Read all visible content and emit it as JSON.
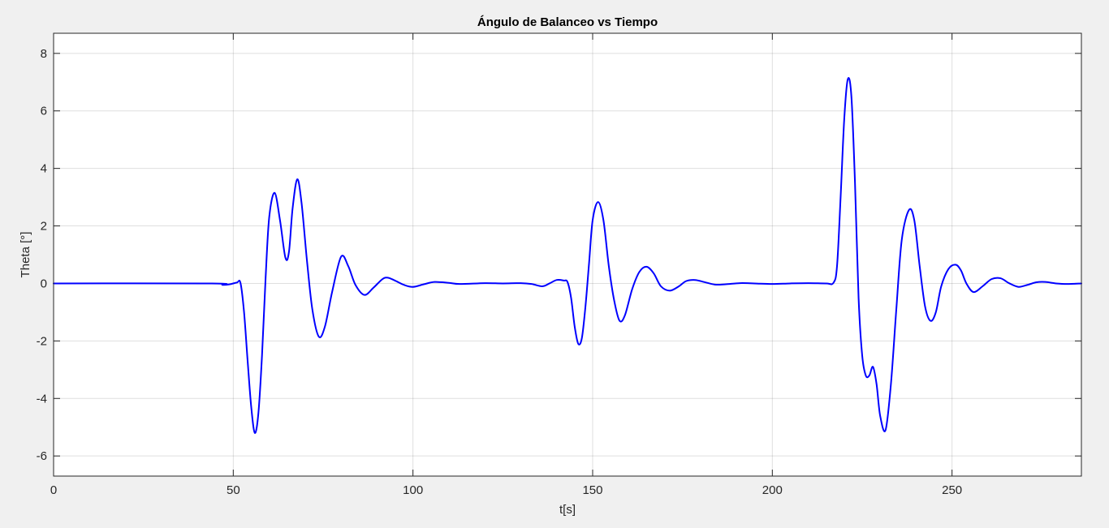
{
  "chart_data": {
    "type": "line",
    "title": "Ángulo de Balanceo vs Tiempo",
    "xlabel": "t[s]",
    "ylabel": "Theta [°]",
    "xlim": [
      0,
      286
    ],
    "ylim": [
      -6.7,
      8.7
    ],
    "grid": true,
    "x_ticks": [
      0,
      50,
      100,
      150,
      200,
      250
    ],
    "x_tick_labels": [
      "0",
      "50",
      "100",
      "150",
      "200",
      "250"
    ],
    "y_ticks": [
      -6,
      -4,
      -2,
      0,
      2,
      4,
      6,
      8
    ],
    "y_tick_labels": [
      "-6",
      "-4",
      "-2",
      "0",
      "2",
      "4",
      "6",
      "8"
    ],
    "series": [
      {
        "name": "theta",
        "color": "#0000ff",
        "x": [
          0,
          44,
          47,
          49,
          51,
          52,
          53,
          54,
          55,
          56,
          57,
          58,
          59,
          60,
          61.5,
          63,
          64.5,
          65.5,
          66.5,
          67.8,
          69,
          70.5,
          72,
          73.8,
          75.5,
          77.5,
          80,
          82,
          84,
          86.5,
          89,
          91.5,
          93,
          95,
          97.5,
          100,
          103,
          106,
          110,
          113,
          120,
          125,
          130,
          133,
          136,
          138,
          140,
          142,
          143,
          144,
          145,
          146,
          147,
          148,
          149,
          150,
          151.5,
          153,
          154.5,
          156,
          157.5,
          159,
          161,
          163,
          165,
          167,
          169,
          171.5,
          174,
          176,
          178.5,
          181,
          184,
          187,
          191,
          195,
          200,
          205,
          210,
          215,
          217,
          218,
          219,
          220,
          221,
          222,
          223,
          224,
          225,
          226,
          227,
          228,
          229,
          230,
          231.5,
          233,
          234.5,
          236,
          238,
          239.5,
          241,
          242.5,
          244,
          245.5,
          247,
          249,
          251,
          252.5,
          254,
          256,
          258.5,
          261,
          263.5,
          266,
          268.5,
          271,
          273.5,
          276,
          279,
          282,
          286
        ],
        "values": [
          0,
          0,
          -0.05,
          -0.03,
          0.03,
          0.02,
          -1.0,
          -2.7,
          -4.3,
          -5.2,
          -4.5,
          -2.5,
          0.2,
          2.3,
          3.15,
          2.2,
          0.9,
          1.1,
          2.6,
          3.62,
          2.8,
          0.8,
          -0.9,
          -1.85,
          -1.5,
          -0.3,
          0.93,
          0.6,
          -0.05,
          -0.4,
          -0.15,
          0.15,
          0.2,
          0.1,
          -0.05,
          -0.12,
          -0.03,
          0.05,
          0.02,
          -0.02,
          0.01,
          0,
          0.01,
          -0.02,
          -0.1,
          0,
          0.12,
          0.1,
          0.05,
          -0.5,
          -1.5,
          -2.1,
          -1.9,
          -0.8,
          0.7,
          2.2,
          2.83,
          2.2,
          0.6,
          -0.6,
          -1.3,
          -1.1,
          -0.2,
          0.4,
          0.58,
          0.35,
          -0.1,
          -0.25,
          -0.1,
          0.08,
          0.12,
          0.05,
          -0.04,
          -0.03,
          0.01,
          0,
          -0.02,
          0,
          0.01,
          0,
          0.02,
          0.6,
          3.0,
          5.7,
          7.1,
          6.5,
          3.5,
          -0.5,
          -2.5,
          -3.2,
          -3.2,
          -2.9,
          -3.5,
          -4.6,
          -5.1,
          -3.5,
          -0.9,
          1.5,
          2.55,
          2.2,
          0.6,
          -0.8,
          -1.3,
          -1.0,
          -0.1,
          0.5,
          0.65,
          0.45,
          0.0,
          -0.3,
          -0.1,
          0.15,
          0.18,
          0.0,
          -0.12,
          -0.05,
          0.04,
          0.05,
          0.0,
          -0.02,
          0
        ]
      }
    ]
  }
}
